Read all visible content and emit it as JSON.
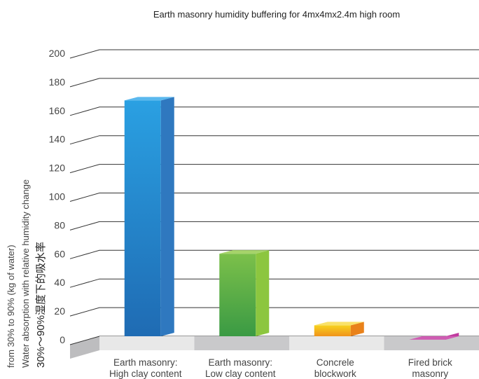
{
  "chart_data": {
    "type": "bar",
    "title": "Earth masonry humidity buffering for 4mx4mx2.4m high room",
    "ylabel_lines": [
      "30%～90%湿度下的吸水率",
      "Water absorption with relative humidity change",
      "from 30% to 90% (kg of water)"
    ],
    "categories": [
      [
        "Earth masonry:",
        "High clay content"
      ],
      [
        "Earth masonry:",
        "Low clay  content"
      ],
      [
        "Concrele",
        "blockwork"
      ],
      [
        "Fired brick",
        "masonry"
      ]
    ],
    "values": [
      170,
      63,
      13,
      3
    ],
    "ylim": [
      0,
      200
    ],
    "yticks": [
      "0",
      "20",
      "40",
      "60",
      "80",
      "100",
      "120",
      "140",
      "160",
      "180",
      "200"
    ],
    "grid": true,
    "bar_colors": [
      {
        "front_top": "#2aa0e2",
        "front_bottom": "#1f6bb3",
        "side": "#2f78bf",
        "top": "#5ab8ee"
      },
      {
        "front_top": "#7cc04a",
        "front_bottom": "#3a9a44",
        "side": "#8cc63f",
        "top": "#a6d46a"
      },
      {
        "front_top": "#f7d21e",
        "front_bottom": "#f0931c",
        "side": "#e9821a",
        "top": "#f9e26a"
      },
      {
        "front_top": "#b0288f",
        "front_bottom": "#8a1e74",
        "side": "#c03a9e",
        "top": "#cf5cb3"
      }
    ]
  }
}
